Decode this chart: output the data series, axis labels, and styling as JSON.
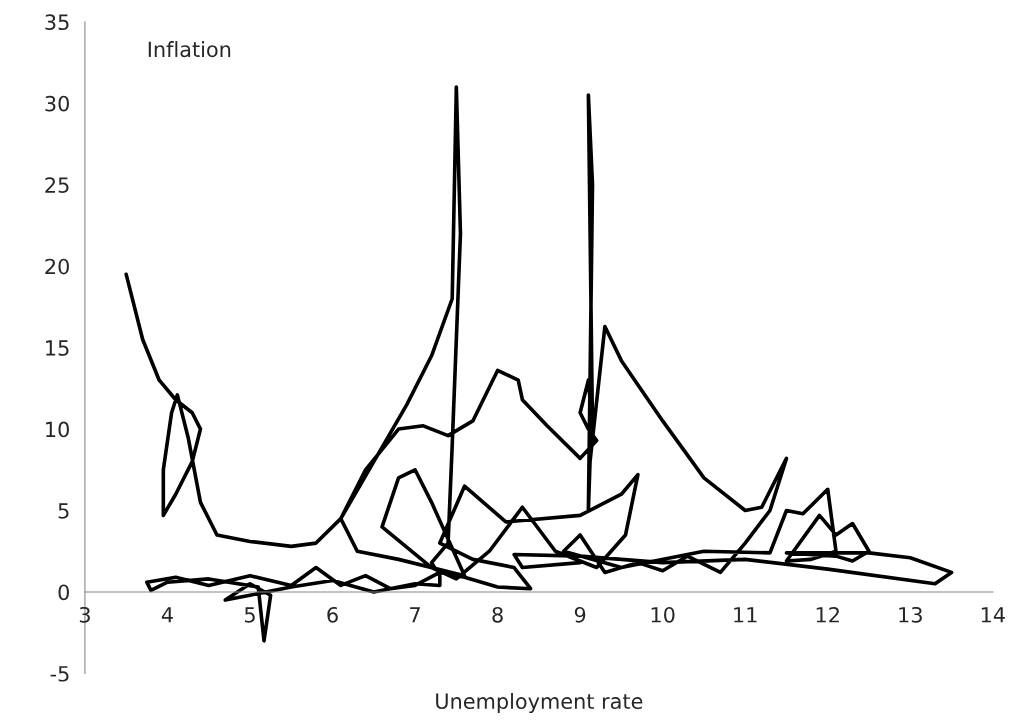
{
  "chart_data": {
    "type": "line",
    "xlabel": "Unemployment rate",
    "ylabel": "Inflation",
    "xlim": [
      3,
      14
    ],
    "xticks": [
      3,
      4,
      5,
      6,
      7,
      8,
      9,
      10,
      11,
      12,
      13,
      14
    ],
    "ylim": [
      -5,
      35
    ],
    "yticks": [
      {
        "value": -5,
        "label": "-5"
      },
      0,
      5,
      10,
      15,
      20,
      25,
      30,
      35
    ],
    "grid": false,
    "legend": false,
    "marker": "none",
    "line_style": "solid",
    "series": [
      {
        "color": "#000000",
        "x": [
          3.5,
          3.7,
          3.9,
          4.1,
          4.3,
          4.4,
          4.3,
          4.1,
          3.95,
          3.95,
          4.05,
          4.12,
          4.25,
          4.4,
          4.6,
          5.0,
          5.5,
          5.8,
          6.1,
          6.5,
          6.9,
          7.2,
          7.45,
          7.5,
          7.55,
          7.45,
          7.4,
          7.2,
          7.3,
          7.3,
          7.0,
          6.5,
          6.0,
          5.5,
          5.0,
          4.7,
          5.0,
          5.25,
          5.17,
          5.1,
          4.5,
          4.0,
          3.8,
          3.75,
          4.1,
          4.5,
          5.0,
          5.5,
          5.8,
          6.1,
          6.4,
          6.7,
          7.0,
          7.3,
          7.6,
          8.0,
          8.4,
          8.2,
          7.7,
          7.3,
          7.6,
          8.1,
          9.0,
          9.5,
          9.7,
          9.55,
          9.2,
          8.7,
          8.3,
          7.9,
          7.5,
          7.2,
          6.6,
          6.8,
          7.0,
          7.2,
          7.6,
          6.8,
          6.3,
          6.1,
          6.4,
          6.8,
          7.1,
          7.4,
          7.7,
          8.0,
          8.25,
          8.3,
          8.6,
          9.0,
          9.2,
          9.1,
          9.0,
          9.1,
          9.15,
          9.1,
          9.15,
          9.1,
          9.12,
          9.3,
          9.5,
          10.0,
          10.5,
          11.0,
          11.2,
          11.5,
          11.3,
          11.0,
          10.7,
          10.3,
          10.0,
          9.7,
          9.3,
          9.0,
          8.8,
          9.5,
          10.5,
          11.3,
          11.5,
          11.7,
          12.0,
          12.1,
          11.8,
          11.5,
          11.9,
          12.1,
          12.3,
          12.5,
          12.3,
          12.1,
          11.5,
          12.5,
          13.0,
          13.5,
          13.3,
          12.0,
          11.0,
          10.0,
          9.0,
          8.2,
          8.3,
          9.0
        ],
        "values": [
          19.5,
          15.5,
          13,
          11.8,
          11,
          10,
          8,
          6,
          4.7,
          7.5,
          11,
          12.1,
          9.5,
          5.5,
          3.5,
          3.1,
          2.8,
          3.0,
          4.5,
          8,
          11.5,
          14.5,
          18,
          31,
          22,
          9,
          3,
          1.8,
          1,
          0.4,
          0.5,
          0,
          0.7,
          0.3,
          -0.2,
          -0.5,
          0.5,
          -0.2,
          -3,
          0.3,
          0.8,
          0.6,
          0.1,
          0.6,
          0.9,
          0.4,
          1.0,
          0.4,
          1.5,
          0.4,
          1.0,
          0.2,
          0.4,
          1.2,
          0.9,
          0.3,
          0.2,
          1.5,
          2.0,
          3.0,
          6.5,
          4.3,
          4.7,
          6,
          7.2,
          3.5,
          1.5,
          2.5,
          5.2,
          2.5,
          0.8,
          1.5,
          4,
          7,
          7.5,
          5.5,
          1.0,
          2.0,
          2.5,
          4.5,
          7.5,
          10,
          10.2,
          9.6,
          10.5,
          13.6,
          13,
          11.8,
          10.2,
          8.2,
          9.3,
          10,
          11,
          13,
          10,
          30.5,
          25,
          5,
          8,
          16.3,
          14.2,
          10.5,
          7,
          5,
          5.2,
          8.2,
          5,
          3,
          1.2,
          2.2,
          1.3,
          1.8,
          1.2,
          3.5,
          2.5,
          1.5,
          2.5,
          2.4,
          5.0,
          4.8,
          6.3,
          2.5,
          2.0,
          1.9,
          4.7,
          3.5,
          4.2,
          2.5,
          1.9,
          2.2,
          2.4,
          2.4,
          2.1,
          1.2,
          0.5,
          1.4,
          2,
          1.8,
          2.2,
          2.3,
          1.5,
          1.8
        ]
      }
    ]
  }
}
